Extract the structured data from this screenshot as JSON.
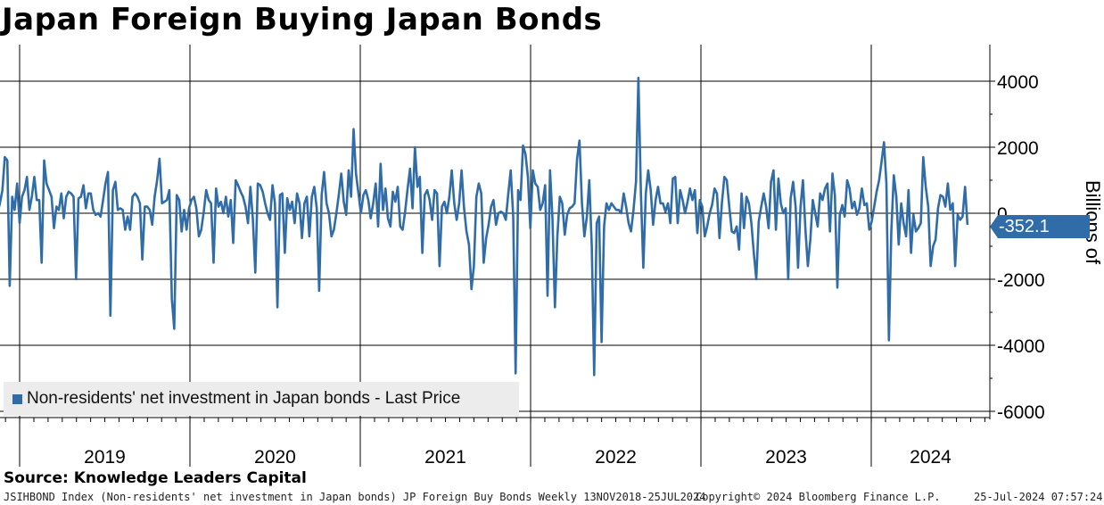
{
  "title": "Japan Foreign Buying Japan Bonds",
  "source": "Source: Knowledge Leaders Capital",
  "footer": {
    "index": "JSIHBOND Index (Non-residents' net investment in Japan bonds) JP Foreign Buy Bonds  Weekly 13NOV2018-25JUL2024",
    "copyright": "Copyright© 2024 Bloomberg Finance L.P.",
    "date": "25-Jul-2024 07:57:24"
  },
  "colors": {
    "line": "#2f6ca8",
    "last_price_tag": "#2f6ca8",
    "grid": "#000000"
  },
  "chart_data": {
    "type": "line",
    "title": "Japan Foreign Buying Japan Bonds",
    "ylabel": "Billions of",
    "ylim": [
      -6200,
      5000
    ],
    "yticks": [
      4000,
      2000,
      0,
      -2000,
      -4000,
      -6000
    ],
    "ytick_labels": [
      "4000",
      "2000",
      "0",
      "-2000",
      "-4000",
      "-6000"
    ],
    "year_labels": [
      "2019",
      "2020",
      "2021",
      "2022",
      "2023",
      "2024"
    ],
    "legend": "Non-residents' net investment in Japan bonds - Last Price",
    "last_price": "-352.1",
    "x_start": 2018.87,
    "x_end": 2024.565,
    "series": [
      {
        "name": "Non-residents' net investment in Japan bonds - Last Price",
        "values": [
          0,
          300,
          700,
          1700,
          1600,
          -2200,
          500,
          100,
          900,
          -300,
          500,
          700,
          1100,
          100,
          500,
          1100,
          400,
          400,
          -1500,
          1600,
          900,
          700,
          500,
          -450,
          200,
          100,
          600,
          -150,
          500,
          650,
          600,
          500,
          -2000,
          450,
          500,
          850,
          150,
          600,
          600,
          100,
          -50,
          0,
          -100,
          400,
          900,
          1250,
          -3100,
          700,
          950,
          100,
          150,
          100,
          -500,
          -100,
          -500,
          500,
          600,
          500,
          300,
          -1400,
          200,
          200,
          100,
          -350,
          500,
          1000,
          1650,
          300,
          350,
          400,
          700,
          -2600,
          -3500,
          550,
          400,
          -550,
          100,
          -500,
          150,
          400,
          500,
          150,
          -700,
          -500,
          50,
          700,
          400,
          300,
          -1500,
          750,
          200,
          350,
          0,
          500,
          -100,
          400,
          -900,
          1000,
          850,
          650,
          500,
          200,
          -300,
          800,
          -200,
          -1800,
          900,
          850,
          650,
          300,
          0,
          -200,
          850,
          300,
          -2850,
          550,
          600,
          -1200,
          450,
          100,
          350,
          -300,
          600,
          300,
          -750,
          300,
          500,
          -700,
          500,
          800,
          150,
          -2350,
          550,
          1250,
          300,
          0,
          -700,
          -500,
          0,
          550,
          1200,
          350,
          -50,
          1300,
          500,
          2550,
          1200,
          600,
          0,
          550,
          700,
          400,
          -150,
          300,
          900,
          -400,
          1500,
          100,
          750,
          -150,
          -400,
          650,
          350,
          800,
          -400,
          -500,
          50,
          750,
          1350,
          150,
          2000,
          800,
          1100,
          -1200,
          550,
          700,
          400,
          -200,
          700,
          600,
          -1600,
          200,
          350,
          0,
          500,
          1300,
          300,
          -200,
          300,
          1300,
          150,
          -550,
          -950,
          -2300,
          -1600,
          500,
          900,
          600,
          -1500,
          -750,
          -350,
          200,
          400,
          -350,
          0,
          50,
          0,
          -200,
          600,
          1300,
          -100,
          -4850,
          700,
          400,
          2050,
          1800,
          1100,
          -450,
          1300,
          900,
          800,
          100,
          300,
          850,
          -2500,
          1300,
          -150,
          -2850,
          -700,
          500,
          300,
          -650,
          -50,
          150,
          200,
          300,
          1650,
          2200,
          300,
          -700,
          -100,
          1000,
          -1000,
          -4900,
          -300,
          -100,
          -3900,
          -400,
          300,
          100,
          300,
          200,
          100,
          100,
          0,
          600,
          200,
          -300,
          -550,
          100,
          950,
          4100,
          600,
          -1650,
          600,
          1300,
          700,
          -350,
          400,
          800,
          300,
          300,
          50,
          300,
          -300,
          1050,
          1100,
          -300,
          700,
          400,
          0,
          350,
          750,
          400,
          700,
          -600,
          400,
          200,
          -700,
          -400,
          0,
          250,
          750,
          600,
          -750,
          300,
          1100,
          1000,
          200,
          -550,
          -600,
          -400,
          -1100,
          600,
          -450,
          500,
          300,
          -300,
          -1200,
          -2000,
          -250,
          200,
          600,
          200,
          -450,
          950,
          1300,
          -500,
          1050,
          300,
          0,
          150,
          -2000,
          450,
          950,
          200,
          -1650,
          200,
          1000,
          -500,
          -1600,
          -800,
          400,
          0,
          -400,
          600,
          400,
          750,
          900,
          -550,
          1200,
          550,
          -2250,
          -50,
          250,
          -100,
          1000,
          750,
          150,
          350,
          -50,
          150,
          750,
          250,
          300,
          -500,
          -250,
          200,
          650,
          1000,
          1550,
          2150,
          900,
          -3850,
          -550,
          1150,
          500,
          -950,
          300,
          -300,
          -700,
          700,
          -1200,
          -50,
          -550,
          -450,
          -300,
          1700,
          800,
          200,
          -1600,
          -1000,
          -800,
          150,
          550,
          500,
          200,
          900,
          100,
          300,
          -1600,
          -50,
          -200,
          -100,
          800,
          -352.1
        ]
      }
    ]
  }
}
